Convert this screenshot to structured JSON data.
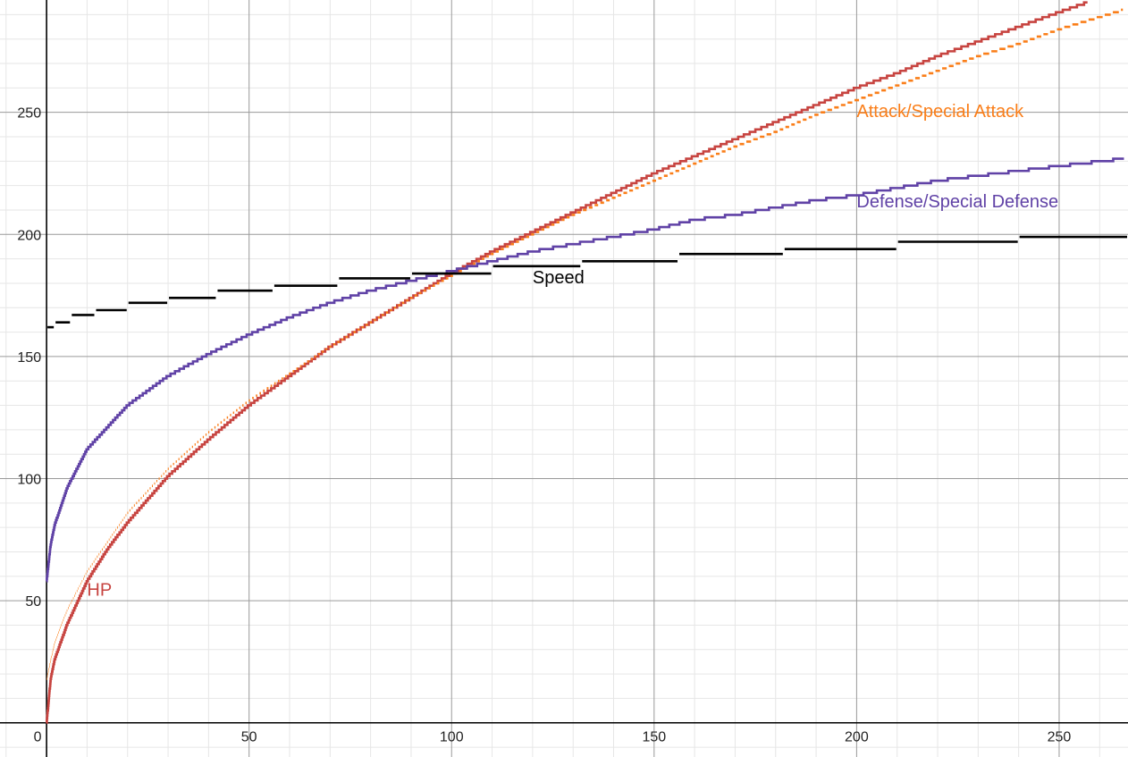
{
  "chart_data": {
    "type": "line",
    "title": "",
    "xlabel": "",
    "ylabel": "",
    "xlim": [
      -11.5,
      267
    ],
    "ylim": [
      -14,
      296
    ],
    "grid": true,
    "x_ticks": [
      0,
      50,
      100,
      150,
      200,
      250
    ],
    "y_ticks": [
      50,
      100,
      150,
      200,
      250
    ],
    "series": [
      {
        "name": "HP",
        "color": "#c74440",
        "step": "fine",
        "points": [
          [
            0,
            0
          ],
          [
            1,
            18
          ],
          [
            2,
            26
          ],
          [
            5,
            40
          ],
          [
            10,
            58
          ],
          [
            15,
            71
          ],
          [
            20,
            82
          ],
          [
            30,
            101
          ],
          [
            40,
            116
          ],
          [
            50,
            130
          ],
          [
            60,
            142
          ],
          [
            70,
            154
          ],
          [
            80,
            164
          ],
          [
            90,
            174
          ],
          [
            100,
            184
          ],
          [
            110,
            193
          ],
          [
            120,
            201
          ],
          [
            130,
            209
          ],
          [
            140,
            217
          ],
          [
            150,
            225
          ],
          [
            160,
            232
          ],
          [
            170,
            239
          ],
          [
            180,
            246
          ],
          [
            190,
            253
          ],
          [
            200,
            260
          ],
          [
            210,
            266
          ],
          [
            220,
            273
          ],
          [
            230,
            279
          ],
          [
            240,
            285
          ],
          [
            250,
            291
          ],
          [
            257,
            295
          ]
        ]
      },
      {
        "name": "Attack/Special Attack",
        "color": "#fa7e19",
        "step": "dashed",
        "points": [
          [
            0,
            18
          ],
          [
            1,
            26
          ],
          [
            2,
            33
          ],
          [
            5,
            46
          ],
          [
            10,
            62
          ],
          [
            20,
            86
          ],
          [
            30,
            104
          ],
          [
            40,
            119
          ],
          [
            50,
            132
          ],
          [
            60,
            143
          ],
          [
            70,
            154
          ],
          [
            80,
            164
          ],
          [
            90,
            174
          ],
          [
            100,
            183
          ],
          [
            110,
            192
          ],
          [
            120,
            200
          ],
          [
            130,
            208
          ],
          [
            140,
            215
          ],
          [
            150,
            222
          ],
          [
            160,
            229
          ],
          [
            170,
            236
          ],
          [
            180,
            242
          ],
          [
            190,
            249
          ],
          [
            200,
            255
          ],
          [
            210,
            261
          ],
          [
            220,
            267
          ],
          [
            230,
            273
          ],
          [
            240,
            278
          ],
          [
            250,
            284
          ],
          [
            266,
            292
          ]
        ]
      },
      {
        "name": "Defense/Special Defense",
        "color": "#6042a6",
        "step": "medium",
        "points": [
          [
            0,
            58
          ],
          [
            1,
            73
          ],
          [
            2,
            81
          ],
          [
            5,
            96
          ],
          [
            10,
            112
          ],
          [
            20,
            130
          ],
          [
            30,
            142
          ],
          [
            40,
            151
          ],
          [
            50,
            159
          ],
          [
            60,
            166
          ],
          [
            70,
            172
          ],
          [
            80,
            177
          ],
          [
            90,
            181
          ],
          [
            100,
            185
          ],
          [
            110,
            189
          ],
          [
            120,
            193
          ],
          [
            130,
            196
          ],
          [
            140,
            199
          ],
          [
            150,
            202
          ],
          [
            160,
            206
          ],
          [
            170,
            208
          ],
          [
            180,
            211
          ],
          [
            190,
            214
          ],
          [
            200,
            216
          ],
          [
            210,
            219
          ],
          [
            220,
            222
          ],
          [
            230,
            224
          ],
          [
            240,
            226
          ],
          [
            250,
            228
          ],
          [
            266,
            231
          ]
        ]
      },
      {
        "name": "Speed",
        "color": "#000000",
        "step": "coarse",
        "steps": [
          [
            0,
            2,
            162
          ],
          [
            2,
            6,
            164
          ],
          [
            6,
            12,
            167
          ],
          [
            12,
            20,
            169
          ],
          [
            20,
            30,
            172
          ],
          [
            30,
            42,
            174
          ],
          [
            42,
            56,
            177
          ],
          [
            56,
            72,
            179
          ],
          [
            72,
            90,
            182
          ],
          [
            90,
            110,
            184
          ],
          [
            110,
            132,
            187
          ],
          [
            132,
            156,
            189
          ],
          [
            156,
            182,
            192
          ],
          [
            182,
            210,
            194
          ],
          [
            210,
            240,
            197
          ],
          [
            240,
            267,
            199
          ]
        ]
      }
    ],
    "annotations": [
      {
        "text": "HP",
        "color": "#c74440",
        "x": 10,
        "y": 52
      },
      {
        "text": "Attack/Special Attack",
        "color": "#fa7e19",
        "x": 200,
        "y": 248
      },
      {
        "text": "Defense/Special Defense",
        "color": "#6042a6",
        "x": 200,
        "y": 211
      },
      {
        "text": "Speed",
        "color": "#000000",
        "x": 120,
        "y": 180
      }
    ]
  }
}
